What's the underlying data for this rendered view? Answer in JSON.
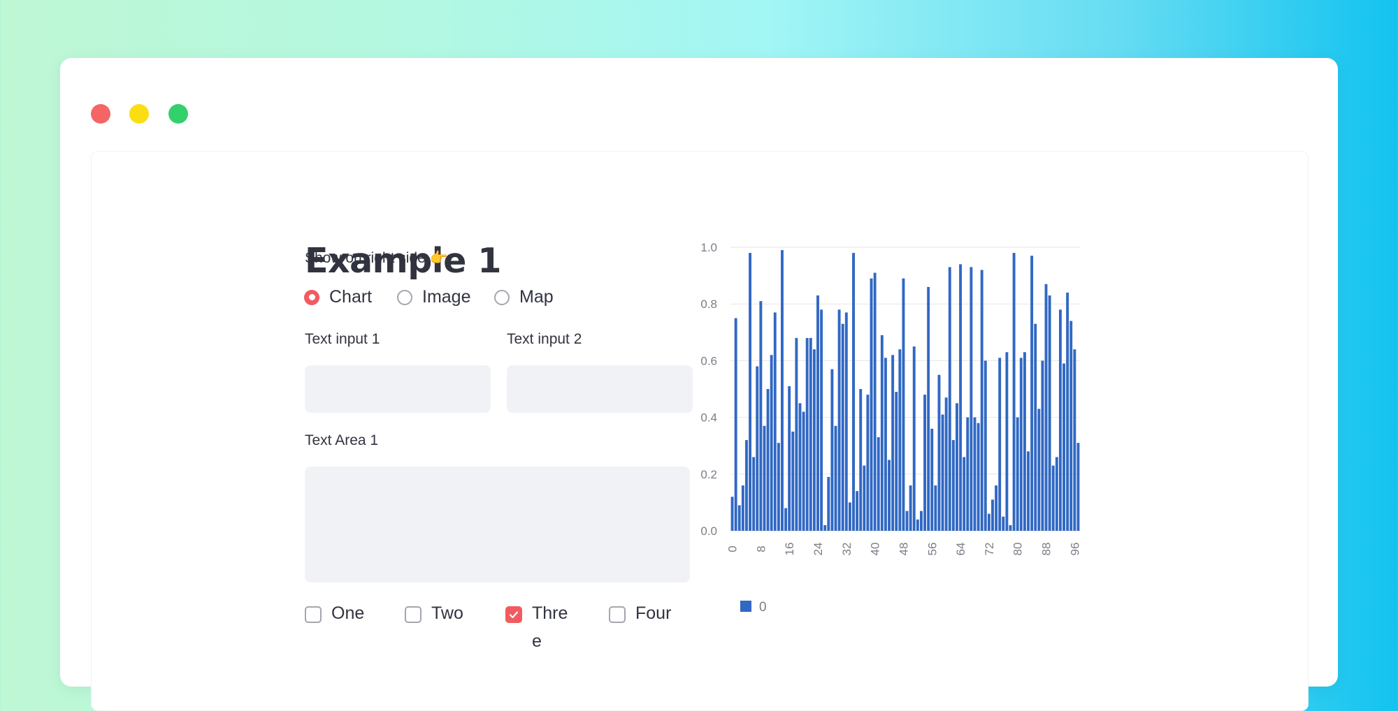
{
  "window": {
    "controls": [
      "close",
      "minimize",
      "maximize"
    ]
  },
  "page": {
    "title": "Example 1"
  },
  "radio_group": {
    "label": "Show on right side 👉",
    "options": [
      {
        "label": "Chart",
        "selected": true
      },
      {
        "label": "Image",
        "selected": false
      },
      {
        "label": "Map",
        "selected": false
      }
    ]
  },
  "text_input_1": {
    "label": "Text input 1",
    "value": ""
  },
  "text_input_2": {
    "label": "Text input 2",
    "value": ""
  },
  "text_area_1": {
    "label": "Text Area 1",
    "value": ""
  },
  "checkboxes": [
    {
      "label": "One",
      "checked": false
    },
    {
      "label": "Two",
      "checked": false
    },
    {
      "label": "Three",
      "checked": true
    },
    {
      "label": "Four",
      "checked": false
    }
  ],
  "colors": {
    "accent": "#f15b5f",
    "bar": "#3068c4",
    "input_bg": "#f0f2f6",
    "text": "#31333f"
  },
  "chart_data": {
    "type": "bar",
    "x_ticks": [
      "0",
      "8",
      "16",
      "24",
      "32",
      "40",
      "48",
      "56",
      "64",
      "72",
      "80",
      "88",
      "96"
    ],
    "y_ticks": [
      "0.0",
      "0.2",
      "0.4",
      "0.6",
      "0.8",
      "1.0"
    ],
    "ylim": [
      0,
      1.0
    ],
    "grid": true,
    "legend": [
      {
        "name": "0",
        "color": "#3068c4"
      }
    ],
    "legend_position": "bottom-left",
    "series": [
      {
        "name": "0",
        "values": [
          0.12,
          0.75,
          0.09,
          0.16,
          0.32,
          0.98,
          0.26,
          0.58,
          0.81,
          0.37,
          0.5,
          0.62,
          0.77,
          0.31,
          0.99,
          0.08,
          0.51,
          0.35,
          0.68,
          0.45,
          0.42,
          0.68,
          0.68,
          0.64,
          0.83,
          0.78,
          0.02,
          0.19,
          0.57,
          0.37,
          0.78,
          0.73,
          0.77,
          0.1,
          0.98,
          0.14,
          0.5,
          0.23,
          0.48,
          0.89,
          0.91,
          0.33,
          0.69,
          0.61,
          0.25,
          0.62,
          0.49,
          0.64,
          0.89,
          0.07,
          0.16,
          0.65,
          0.04,
          0.07,
          0.48,
          0.86,
          0.36,
          0.16,
          0.55,
          0.41,
          0.47,
          0.93,
          0.32,
          0.45,
          0.94,
          0.26,
          0.4,
          0.93,
          0.4,
          0.38,
          0.92,
          0.6,
          0.06,
          0.11,
          0.16,
          0.61,
          0.05,
          0.63,
          0.02,
          0.98,
          0.4,
          0.61,
          0.63,
          0.28,
          0.97,
          0.73,
          0.43,
          0.6,
          0.87,
          0.83,
          0.23,
          0.26,
          0.78,
          0.59,
          0.84,
          0.74,
          0.64,
          0.31
        ]
      }
    ]
  }
}
